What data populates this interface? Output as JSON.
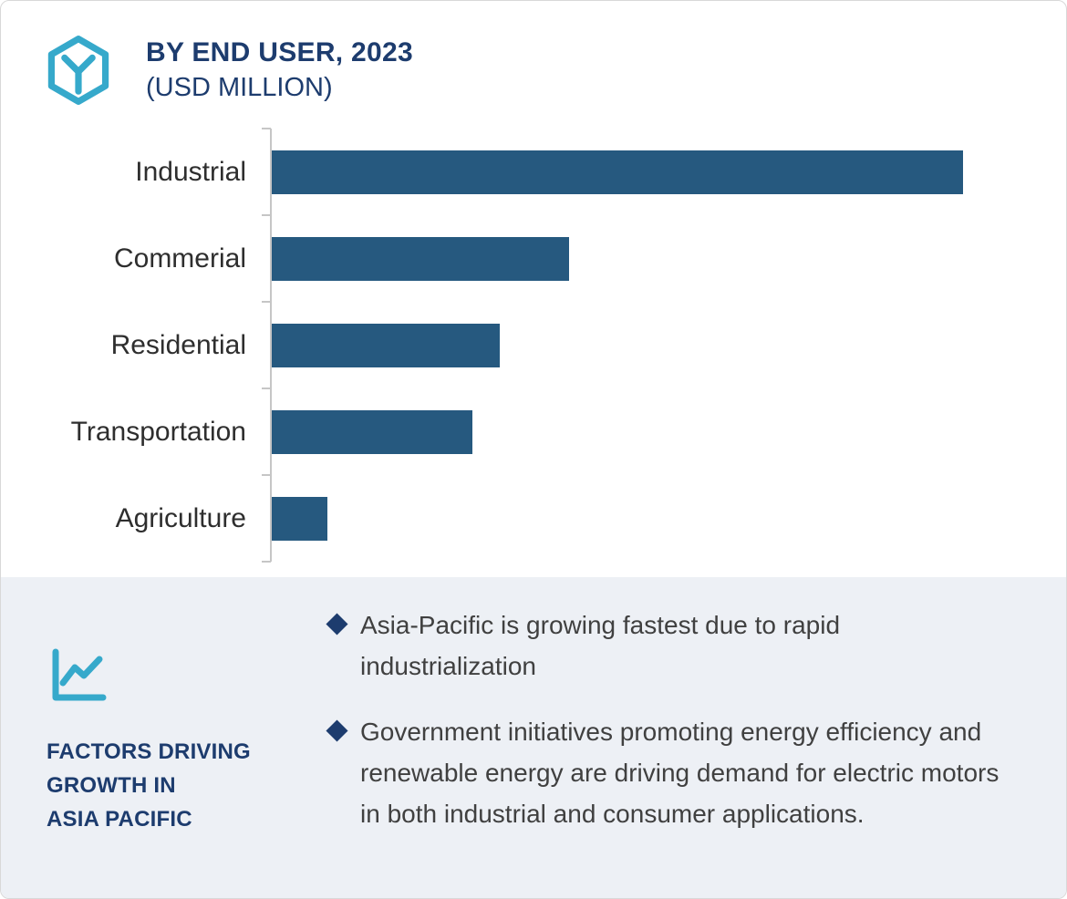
{
  "header": {
    "title": "BY END USER, 2023",
    "subtitle": "(USD MILLION)",
    "icon": "hexagon-y-logo-icon"
  },
  "chart_data": {
    "type": "bar",
    "orientation": "horizontal",
    "title": "BY END USER, 2023 (USD MILLION)",
    "categories": [
      "Industrial",
      "Commerial",
      "Residential",
      "Transportation",
      "Agriculture"
    ],
    "values": [
      100,
      43,
      33,
      29,
      8
    ],
    "value_scale": "relative - axis and data labels not shown in image",
    "xlabel": "",
    "ylabel": "",
    "grid": false,
    "legend": false,
    "bar_color": "#26597f"
  },
  "footer": {
    "icon": "trend-line-chart-icon",
    "heading_lines": [
      "FACTORS DRIVING",
      "GROWTH IN",
      "ASIA PACIFIC"
    ],
    "bullets": [
      "Asia-Pacific is growing fastest due to rapid industrialization",
      "Government initiatives promoting energy efficiency and renewable energy are driving demand for electric motors in both industrial and consumer applications."
    ]
  },
  "colors": {
    "bar": "#26597f",
    "accent_teal": "#36a9cb",
    "navy": "#1d3c6e",
    "panel_bg": "#edf0f5",
    "body_text": "#404040"
  }
}
